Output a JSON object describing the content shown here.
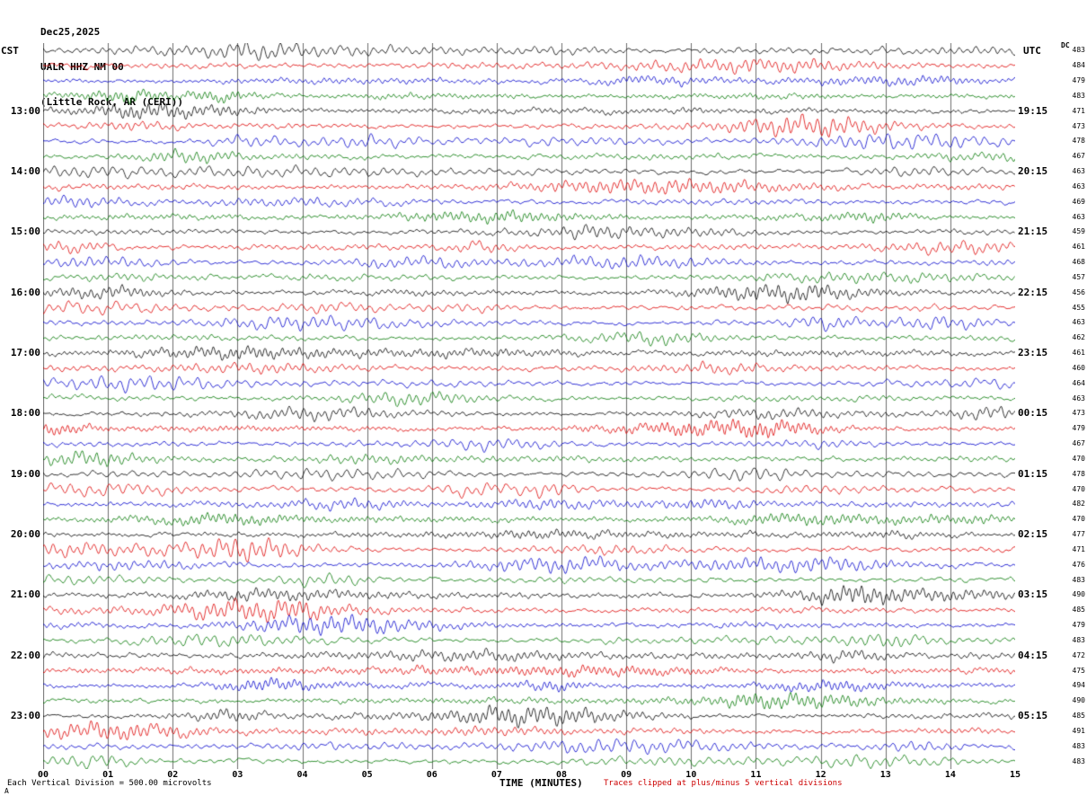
{
  "header": {
    "date": "Dec25,2025",
    "station": "UALR HHZ NM 00",
    "location": "(Little Rock, AR (CERI))",
    "left_tz": "CST",
    "right_tz": "UTC",
    "dc_label": "DC"
  },
  "footer": {
    "xlabel": "TIME (MINUTES)",
    "left_note": "Each Vertical Division =  500.00 microvolts",
    "right_note": "Traces clipped at plus/minus 5 vertical divisions",
    "corner_mark": "A"
  },
  "chart_data": {
    "type": "line",
    "title": "Helicorder seismogram - UALR HHZ NM 00 (Little Rock, AR (CERI)) Dec25,2025",
    "x_axis": {
      "label": "TIME (MINUTES)",
      "ticks": [
        "00",
        "01",
        "02",
        "03",
        "04",
        "05",
        "06",
        "07",
        "08",
        "09",
        "10",
        "11",
        "12",
        "13",
        "14",
        "15"
      ],
      "range_minutes": [
        0,
        15
      ]
    },
    "rows": 48,
    "row_duration_minutes": 15,
    "left_time_labels": [
      {
        "row": 4,
        "label": "13:00"
      },
      {
        "row": 8,
        "label": "14:00"
      },
      {
        "row": 12,
        "label": "15:00"
      },
      {
        "row": 16,
        "label": "16:00"
      },
      {
        "row": 20,
        "label": "17:00"
      },
      {
        "row": 24,
        "label": "18:00"
      },
      {
        "row": 28,
        "label": "19:00"
      },
      {
        "row": 32,
        "label": "20:00"
      },
      {
        "row": 36,
        "label": "21:00"
      },
      {
        "row": 40,
        "label": "22:00"
      },
      {
        "row": 44,
        "label": "23:00"
      }
    ],
    "right_time_labels": [
      {
        "row": 4,
        "label": "19:15"
      },
      {
        "row": 8,
        "label": "20:15"
      },
      {
        "row": 12,
        "label": "21:15"
      },
      {
        "row": 16,
        "label": "22:15"
      },
      {
        "row": 20,
        "label": "23:15"
      },
      {
        "row": 24,
        "label": "00:15"
      },
      {
        "row": 28,
        "label": "01:15"
      },
      {
        "row": 32,
        "label": "02:15"
      },
      {
        "row": 36,
        "label": "03:15"
      },
      {
        "row": 40,
        "label": "04:15"
      },
      {
        "row": 44,
        "label": "05:15"
      }
    ],
    "dc_values": [
      483,
      484,
      479,
      483,
      471,
      473,
      478,
      467,
      463,
      463,
      469,
      463,
      459,
      461,
      468,
      457,
      456,
      455,
      463,
      462,
      461,
      460,
      464,
      463,
      473,
      479,
      467,
      470,
      478,
      470,
      482,
      470,
      477,
      471,
      476,
      483,
      490,
      485,
      479,
      483,
      472,
      475,
      494,
      490,
      485,
      491,
      483,
      483
    ],
    "layout": {
      "trace_color_cycle": [
        "#000000",
        "#dd0000",
        "#0000cc",
        "#007700"
      ],
      "grid_color": "#6e6e6e",
      "clipping_note_color": "#cc0000",
      "grid": "on",
      "x_gridline_every_minutes": 1,
      "legend": "none"
    },
    "notes": {
      "vertical_division_microvolts": 500,
      "clipping": "plus/minus 5 vertical divisions"
    }
  }
}
